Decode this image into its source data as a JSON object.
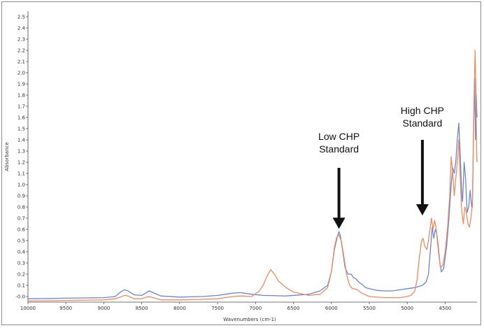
{
  "chart_data": {
    "type": "line",
    "xlabel": "Wavenumbers (cm-1)",
    "ylabel": "Absorbance",
    "xlim": [
      10000,
      4080
    ],
    "ylim": [
      -0.05,
      2.55
    ],
    "x_ticks": [
      10000,
      9500,
      9000,
      8500,
      8000,
      7500,
      7000,
      6500,
      6000,
      5500,
      5000,
      4500
    ],
    "y_ticks": [
      -0.0,
      0.1,
      0.2,
      0.3,
      0.4,
      0.5,
      0.6,
      0.7,
      0.8,
      0.9,
      1.0,
      1.1,
      1.2,
      1.3,
      1.4,
      1.5,
      1.6,
      1.7,
      1.8,
      1.9,
      2.0,
      2.1,
      2.2,
      2.3,
      2.4,
      2.5
    ],
    "y_tick_labels": [
      "-0.0",
      "0.1",
      "0.2",
      "0.3",
      "0.4",
      "0.5",
      "0.6",
      "0.7",
      "0.8",
      "0.9",
      "1.0",
      "1.1",
      "1.2",
      "1.3",
      "1.4",
      "1.5",
      "1.6",
      "1.7",
      "1.8",
      "1.9",
      "2.0",
      "2.1",
      "2.2",
      "2.3",
      "2.4",
      "2.5"
    ],
    "grid": false,
    "series": [
      {
        "color": "#6a85d6",
        "points": [
          [
            10000,
            -0.02
          ],
          [
            9500,
            -0.015
          ],
          [
            9000,
            -0.01
          ],
          [
            8850,
            0.0
          ],
          [
            8780,
            0.04
          ],
          [
            8730,
            0.06
          ],
          [
            8680,
            0.05
          ],
          [
            8600,
            0.015
          ],
          [
            8500,
            0.01
          ],
          [
            8440,
            0.035
          ],
          [
            8400,
            0.05
          ],
          [
            8350,
            0.035
          ],
          [
            8250,
            0.005
          ],
          [
            8000,
            -0.005
          ],
          [
            7700,
            0.0
          ],
          [
            7500,
            0.01
          ],
          [
            7300,
            0.03
          ],
          [
            7200,
            0.035
          ],
          [
            7050,
            0.02
          ],
          [
            6900,
            0.01
          ],
          [
            6600,
            0.005
          ],
          [
            6300,
            0.02
          ],
          [
            6150,
            0.05
          ],
          [
            6050,
            0.1
          ],
          [
            6000,
            0.22
          ],
          [
            5960,
            0.42
          ],
          [
            5920,
            0.54
          ],
          [
            5900,
            0.58
          ],
          [
            5880,
            0.54
          ],
          [
            5850,
            0.4
          ],
          [
            5820,
            0.26
          ],
          [
            5780,
            0.2
          ],
          [
            5740,
            0.2
          ],
          [
            5710,
            0.17
          ],
          [
            5680,
            0.16
          ],
          [
            5640,
            0.13
          ],
          [
            5600,
            0.11
          ],
          [
            5550,
            0.08
          ],
          [
            5500,
            0.07
          ],
          [
            5400,
            0.055
          ],
          [
            5300,
            0.05
          ],
          [
            5200,
            0.05
          ],
          [
            5100,
            0.06
          ],
          [
            5000,
            0.07
          ],
          [
            4900,
            0.08
          ],
          [
            4850,
            0.09
          ],
          [
            4800,
            0.1
          ],
          [
            4750,
            0.13
          ],
          [
            4720,
            0.2
          ],
          [
            4690,
            0.45
          ],
          [
            4670,
            0.62
          ],
          [
            4650,
            0.52
          ],
          [
            4630,
            0.6
          ],
          [
            4610,
            0.56
          ],
          [
            4590,
            0.45
          ],
          [
            4570,
            0.3
          ],
          [
            4550,
            0.22
          ],
          [
            4520,
            0.25
          ],
          [
            4480,
            0.45
          ],
          [
            4450,
            0.7
          ],
          [
            4420,
            1.0
          ],
          [
            4400,
            1.15
          ],
          [
            4380,
            1.1
          ],
          [
            4360,
            1.2
          ],
          [
            4340,
            1.4
          ],
          [
            4320,
            1.55
          ],
          [
            4300,
            1.25
          ],
          [
            4280,
            0.9
          ],
          [
            4270,
            0.85
          ],
          [
            4250,
            1.2
          ],
          [
            4230,
            1.05
          ],
          [
            4210,
            0.75
          ],
          [
            4190,
            0.8
          ],
          [
            4170,
            0.95
          ],
          [
            4150,
            0.8
          ],
          [
            4140,
            0.85
          ],
          [
            4125,
            1.5
          ],
          [
            4110,
            1.95
          ],
          [
            4100,
            1.4
          ],
          [
            4090,
            1.8
          ],
          [
            4080,
            1.6
          ]
        ]
      },
      {
        "color": "#f08a5d",
        "points": [
          [
            10000,
            -0.04
          ],
          [
            9500,
            -0.035
          ],
          [
            9000,
            -0.03
          ],
          [
            8850,
            -0.02
          ],
          [
            8780,
            -0.005
          ],
          [
            8730,
            0.01
          ],
          [
            8680,
            0.005
          ],
          [
            8600,
            -0.02
          ],
          [
            8500,
            -0.02
          ],
          [
            8440,
            -0.005
          ],
          [
            8400,
            0.0
          ],
          [
            8350,
            -0.01
          ],
          [
            8250,
            -0.03
          ],
          [
            8000,
            -0.03
          ],
          [
            7700,
            -0.025
          ],
          [
            7500,
            -0.02
          ],
          [
            7300,
            0.0
          ],
          [
            7200,
            0.005
          ],
          [
            7050,
            0.0
          ],
          [
            6950,
            0.05
          ],
          [
            6900,
            0.1
          ],
          [
            6850,
            0.18
          ],
          [
            6800,
            0.24
          ],
          [
            6750,
            0.2
          ],
          [
            6700,
            0.14
          ],
          [
            6600,
            0.08
          ],
          [
            6500,
            0.04
          ],
          [
            6300,
            0.01
          ],
          [
            6150,
            0.02
          ],
          [
            6050,
            0.08
          ],
          [
            6000,
            0.22
          ],
          [
            5960,
            0.44
          ],
          [
            5930,
            0.53
          ],
          [
            5900,
            0.55
          ],
          [
            5870,
            0.5
          ],
          [
            5840,
            0.38
          ],
          [
            5800,
            0.2
          ],
          [
            5760,
            0.1
          ],
          [
            5720,
            0.07
          ],
          [
            5700,
            0.07
          ],
          [
            5660,
            0.06
          ],
          [
            5600,
            0.03
          ],
          [
            5500,
            0.0
          ],
          [
            5300,
            -0.01
          ],
          [
            5100,
            -0.01
          ],
          [
            5000,
            0.0
          ],
          [
            4950,
            0.01
          ],
          [
            4900,
            0.05
          ],
          [
            4870,
            0.15
          ],
          [
            4840,
            0.35
          ],
          [
            4810,
            0.5
          ],
          [
            4790,
            0.52
          ],
          [
            4770,
            0.45
          ],
          [
            4740,
            0.42
          ],
          [
            4720,
            0.5
          ],
          [
            4700,
            0.6
          ],
          [
            4680,
            0.7
          ],
          [
            4660,
            0.6
          ],
          [
            4640,
            0.68
          ],
          [
            4620,
            0.62
          ],
          [
            4600,
            0.48
          ],
          [
            4580,
            0.35
          ],
          [
            4560,
            0.26
          ],
          [
            4530,
            0.28
          ],
          [
            4500,
            0.4
          ],
          [
            4470,
            0.6
          ],
          [
            4440,
            0.9
          ],
          [
            4420,
            1.25
          ],
          [
            4400,
            1.1
          ],
          [
            4380,
            0.9
          ],
          [
            4360,
            1.05
          ],
          [
            4340,
            1.2
          ],
          [
            4320,
            1.4
          ],
          [
            4300,
            1.05
          ],
          [
            4280,
            0.75
          ],
          [
            4260,
            0.65
          ],
          [
            4240,
            0.8
          ],
          [
            4220,
            0.75
          ],
          [
            4200,
            0.65
          ],
          [
            4180,
            0.62
          ],
          [
            4160,
            0.7
          ],
          [
            4150,
            0.78
          ],
          [
            4140,
            0.8
          ],
          [
            4125,
            1.55
          ],
          [
            4115,
            1.9
          ],
          [
            4105,
            2.2
          ],
          [
            4095,
            1.85
          ],
          [
            4085,
            1.3
          ],
          [
            4080,
            1.2
          ]
        ]
      }
    ],
    "annotations": [
      {
        "lines": [
          "Low CHP",
          "Standard"
        ],
        "x": 5900,
        "arrow_tip_y": 0.58,
        "arrow_tail_y": 1.15,
        "text_y": 1.4
      },
      {
        "lines": [
          "High CHP",
          "Standard"
        ],
        "x": 4800,
        "arrow_tip_y": 0.7,
        "arrow_tail_y": 1.4,
        "text_y": 1.63
      }
    ]
  }
}
